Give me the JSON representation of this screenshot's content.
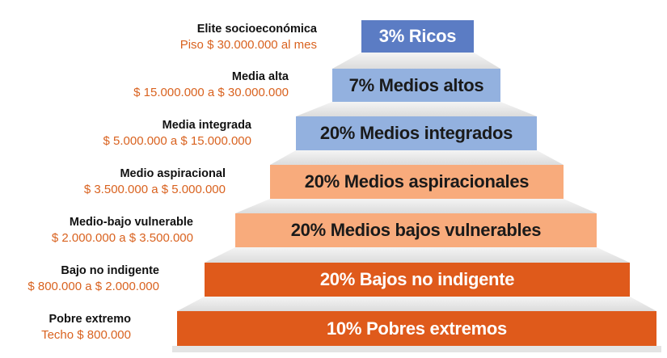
{
  "colors": {
    "rich": "#5b7cc4",
    "middle_upper": "#93b1df",
    "middle_lower": "#f8ab7c",
    "low": "#df5a1b",
    "range_text": "#d9621f"
  },
  "tiers": [
    {
      "name": "Elite socioeconómica",
      "range": "Piso $ 30.000.000 al mes",
      "bar": "3% Ricos"
    },
    {
      "name": "Media alta",
      "range": "$ 15.000.000 a $ 30.000.000",
      "bar": "7% Medios altos"
    },
    {
      "name": "Media integrada",
      "range": "$ 5.000.000 a $ 15.000.000",
      "bar": "20% Medios integrados"
    },
    {
      "name": "Medio aspiracional",
      "range": "$ 3.500.000 a $ 5.000.000",
      "bar": "20% Medios aspiracionales"
    },
    {
      "name": "Medio-bajo vulnerable",
      "range": "$ 2.000.000 a $ 3.500.000",
      "bar": "20% Medios bajos vulnerables"
    },
    {
      "name": "Bajo no indigente",
      "range": "$ 800.000 a $ 2.000.000",
      "bar": "20% Bajos no indigente"
    },
    {
      "name": "Pobre extremo",
      "range": "Techo $ 800.000",
      "bar": "10% Pobres extremos"
    }
  ]
}
